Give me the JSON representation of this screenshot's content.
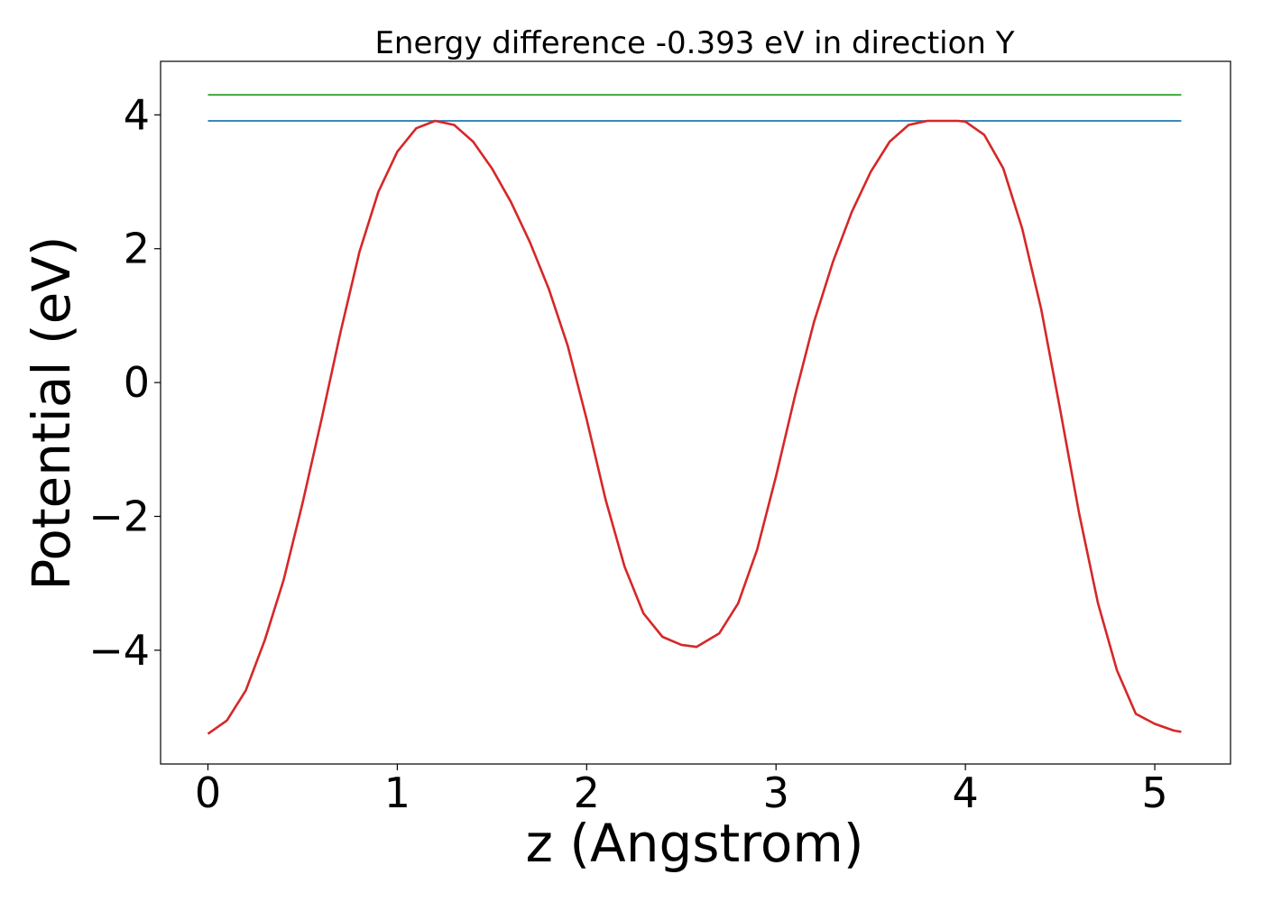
{
  "chart_data": {
    "type": "line",
    "title": "Energy difference -0.393 eV in direction Y",
    "xlabel": "z (Angstrom)",
    "ylabel": "Potential (eV)",
    "xlim": [
      -0.25,
      5.4
    ],
    "ylim": [
      -5.7,
      4.8
    ],
    "x_ticks": [
      0,
      1,
      2,
      3,
      4,
      5
    ],
    "x_tick_labels": [
      "0",
      "1",
      "2",
      "3",
      "4",
      "5"
    ],
    "y_ticks": [
      -4,
      -2,
      0,
      2,
      4
    ],
    "y_tick_labels": [
      "−4",
      "−2",
      "0",
      "2",
      "4"
    ],
    "grid": false,
    "series": [
      {
        "color": "#2ca02c",
        "x": [
          0,
          5.14
        ],
        "y": [
          4.3,
          4.3
        ]
      },
      {
        "color": "#1f77b4",
        "x": [
          0,
          5.14
        ],
        "y": [
          3.91,
          3.91
        ]
      },
      {
        "color": "#d62728",
        "x": [
          0.0,
          0.1,
          0.2,
          0.3,
          0.4,
          0.5,
          0.6,
          0.7,
          0.8,
          0.9,
          1.0,
          1.1,
          1.2,
          1.3,
          1.4,
          1.5,
          1.6,
          1.7,
          1.8,
          1.9,
          2.0,
          2.1,
          2.2,
          2.3,
          2.4,
          2.5,
          2.58,
          2.7,
          2.8,
          2.9,
          3.0,
          3.1,
          3.2,
          3.3,
          3.4,
          3.5,
          3.6,
          3.7,
          3.8,
          3.9,
          3.96,
          4.0,
          4.1,
          4.2,
          4.3,
          4.4,
          4.5,
          4.6,
          4.7,
          4.8,
          4.9,
          5.0,
          5.1,
          5.14
        ],
        "y": [
          -5.25,
          -5.05,
          -4.6,
          -3.85,
          -2.95,
          -1.8,
          -0.55,
          0.75,
          1.95,
          2.85,
          3.45,
          3.8,
          3.91,
          3.85,
          3.6,
          3.2,
          2.7,
          2.1,
          1.4,
          0.55,
          -0.55,
          -1.75,
          -2.75,
          -3.45,
          -3.8,
          -3.92,
          -3.95,
          -3.75,
          -3.3,
          -2.5,
          -1.4,
          -0.2,
          0.9,
          1.8,
          2.55,
          3.15,
          3.6,
          3.85,
          3.91,
          3.91,
          3.91,
          3.9,
          3.7,
          3.2,
          2.3,
          1.1,
          -0.4,
          -1.95,
          -3.3,
          -4.3,
          -4.95,
          -5.1,
          -5.2,
          -5.22
        ]
      }
    ]
  }
}
